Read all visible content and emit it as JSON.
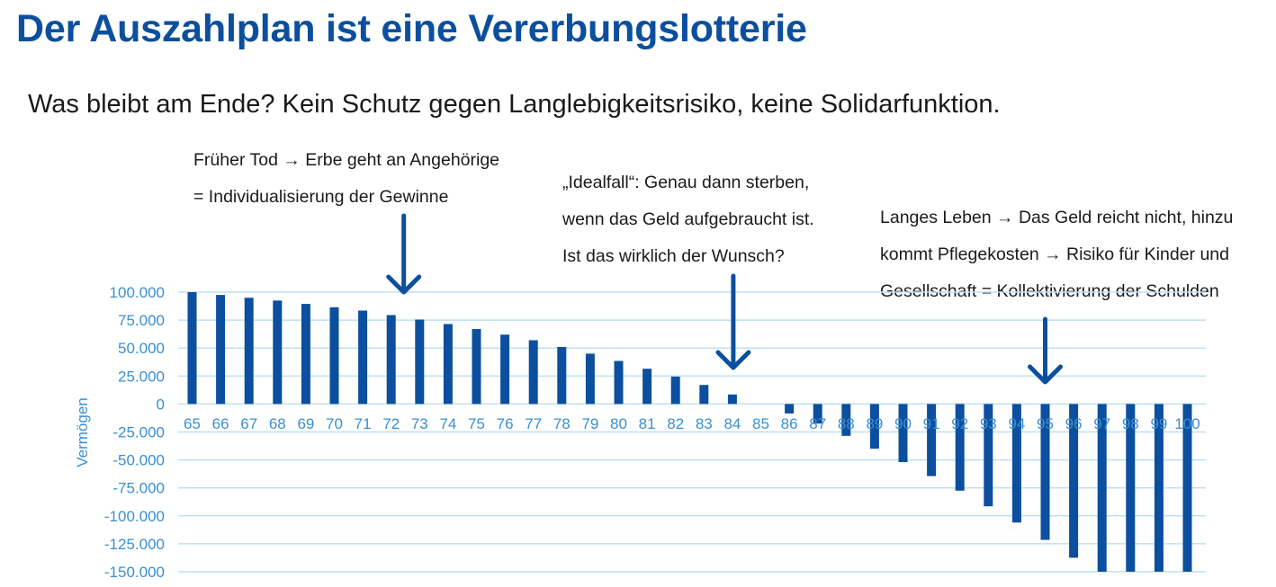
{
  "title": "Der Auszahlplan ist eine Vererbungslotterie",
  "subtitle": "Was bleibt am Ende? Kein Schutz gegen Langlebigkeitsrisiko, keine Solidarfunktion.",
  "annotations": {
    "early_death": [
      "Früher Tod → Erbe geht an Angehörige",
      "= Individualisierung der Gewinne"
    ],
    "ideal_case": [
      "„Idealfall“: Genau dann sterben,",
      "wenn das Geld aufgebraucht ist.",
      "Ist das wirklich der Wunsch?"
    ],
    "long_life": [
      "Langes Leben → Das Geld reicht nicht, hinzu",
      "kommt Pflegekosten → Risiko für Kinder und",
      "Gesellschaft = Kollektivierung der Schulden"
    ]
  },
  "colors": {
    "title": "#0b4f9e",
    "bar": "#0b4f9e",
    "axis_text": "#3a8fd4",
    "grid": "#bfe0f3",
    "arrow": "#0b4f9e"
  },
  "arrow_icon": "arrow-down-icon",
  "chart_data": {
    "type": "bar",
    "ylabel": "Vermögen",
    "ylim": [
      -150000,
      100000
    ],
    "yticks": [
      "100.000",
      "75.000",
      "50.000",
      "25.000",
      "0",
      "-25.000",
      "-50.000",
      "-75.000",
      "-100.000",
      "-125.000",
      "-150.000"
    ],
    "categories": [
      "65",
      "66",
      "67",
      "68",
      "69",
      "70",
      "71",
      "72",
      "73",
      "74",
      "75",
      "76",
      "77",
      "78",
      "79",
      "80",
      "81",
      "82",
      "83",
      "84",
      "85",
      "86",
      "87",
      "88",
      "89",
      "90",
      "91",
      "92",
      "93",
      "94",
      "95",
      "96",
      "97",
      "98",
      "99",
      "100"
    ],
    "values": [
      100000,
      97500,
      95000,
      92500,
      89500,
      86500,
      83500,
      79500,
      75500,
      71500,
      67000,
      62000,
      57000,
      51000,
      45000,
      38500,
      31500,
      24500,
      17000,
      8500,
      0,
      -8500,
      -17500,
      -28500,
      -40000,
      -52000,
      -64500,
      -77500,
      -91500,
      -106000,
      -121500,
      -137500,
      -150000,
      -150000,
      -150000,
      -150000
    ],
    "arrows_at": [
      "72",
      "84",
      "95"
    ],
    "grid": true,
    "legend": "none"
  }
}
